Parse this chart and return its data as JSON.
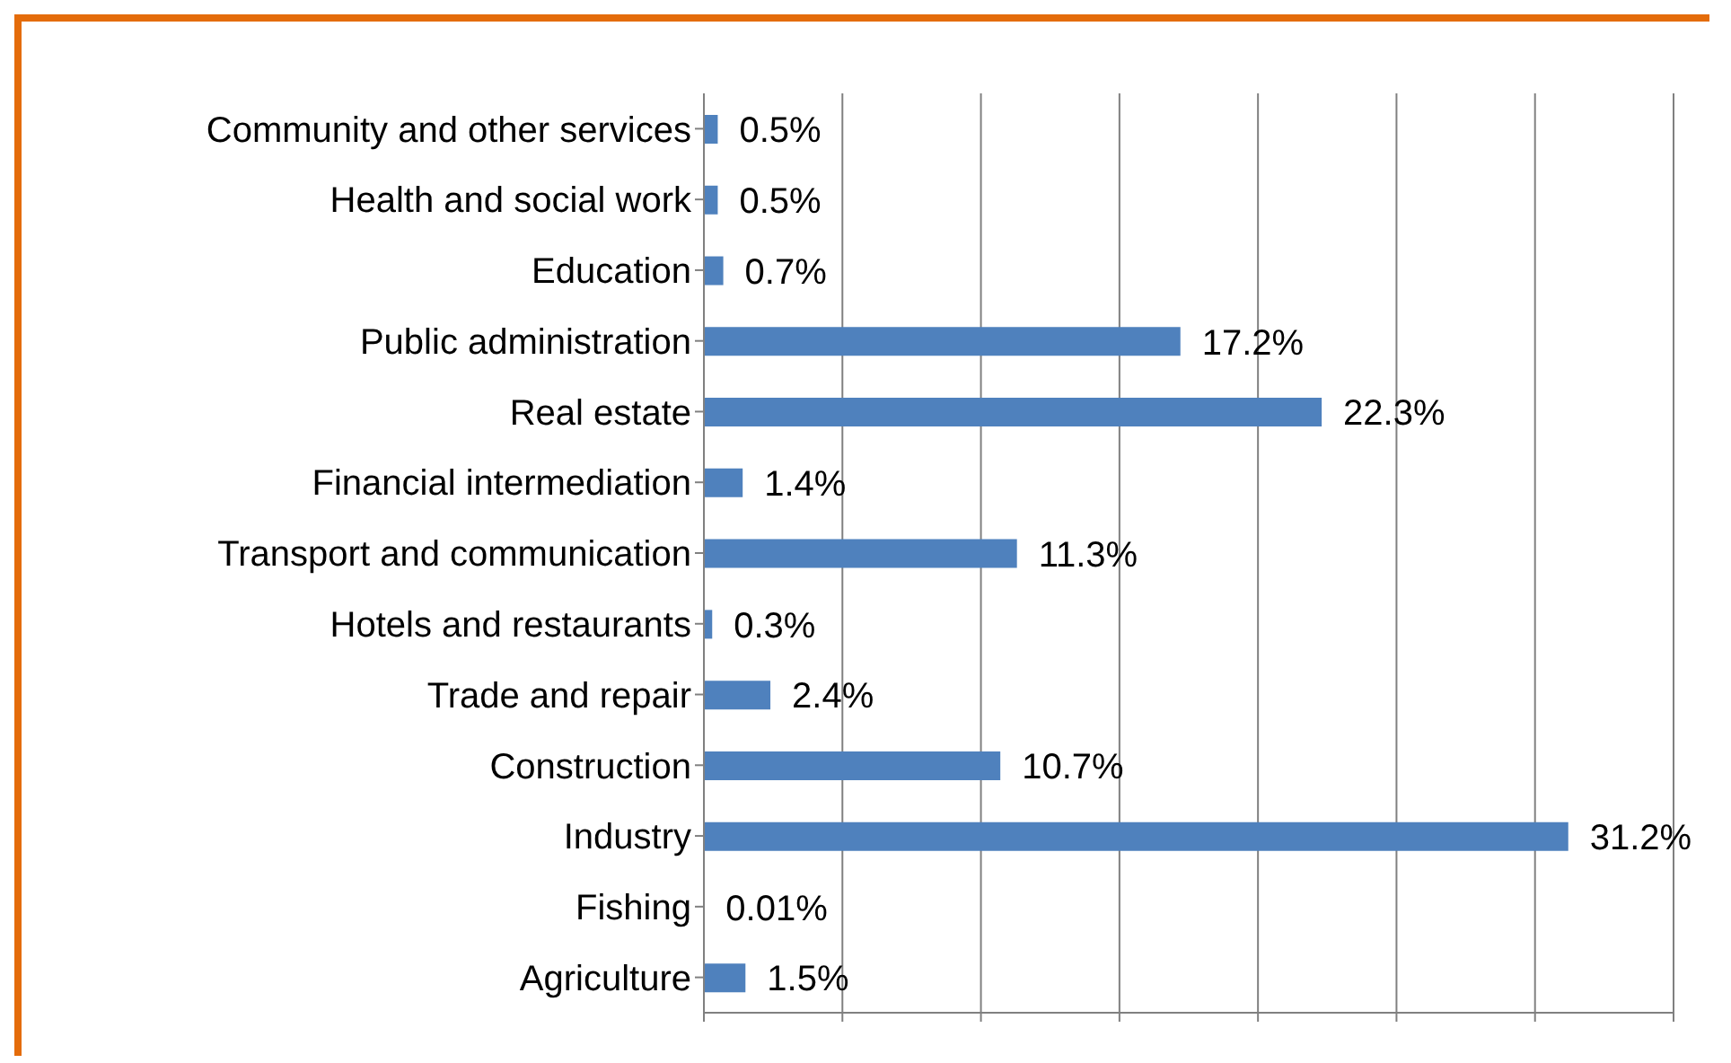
{
  "chart_data": {
    "type": "bar",
    "orientation": "horizontal",
    "categories": [
      "Community and other services",
      "Health and social work",
      "Education",
      "Public administration",
      "Real estate",
      "Financial intermediation",
      "Transport and communication",
      "Hotels and restaurants",
      "Trade and repair",
      "Construction",
      "Industry",
      "Fishing",
      "Agriculture"
    ],
    "values": [
      0.5,
      0.5,
      0.7,
      17.2,
      22.3,
      1.4,
      11.3,
      0.3,
      2.4,
      10.7,
      31.2,
      0.01,
      1.5
    ],
    "value_labels": [
      "0.5%",
      "0.5%",
      "0.7%",
      "17.2%",
      "22.3%",
      "1.4%",
      "11.3%",
      "0.3%",
      "2.4%",
      "10.7%",
      "31.2%",
      "0.01%",
      "1.5%"
    ],
    "color": "#4f81bd",
    "xlim": [
      0,
      35
    ],
    "tick_labels": "y",
    "grid": "x"
  }
}
